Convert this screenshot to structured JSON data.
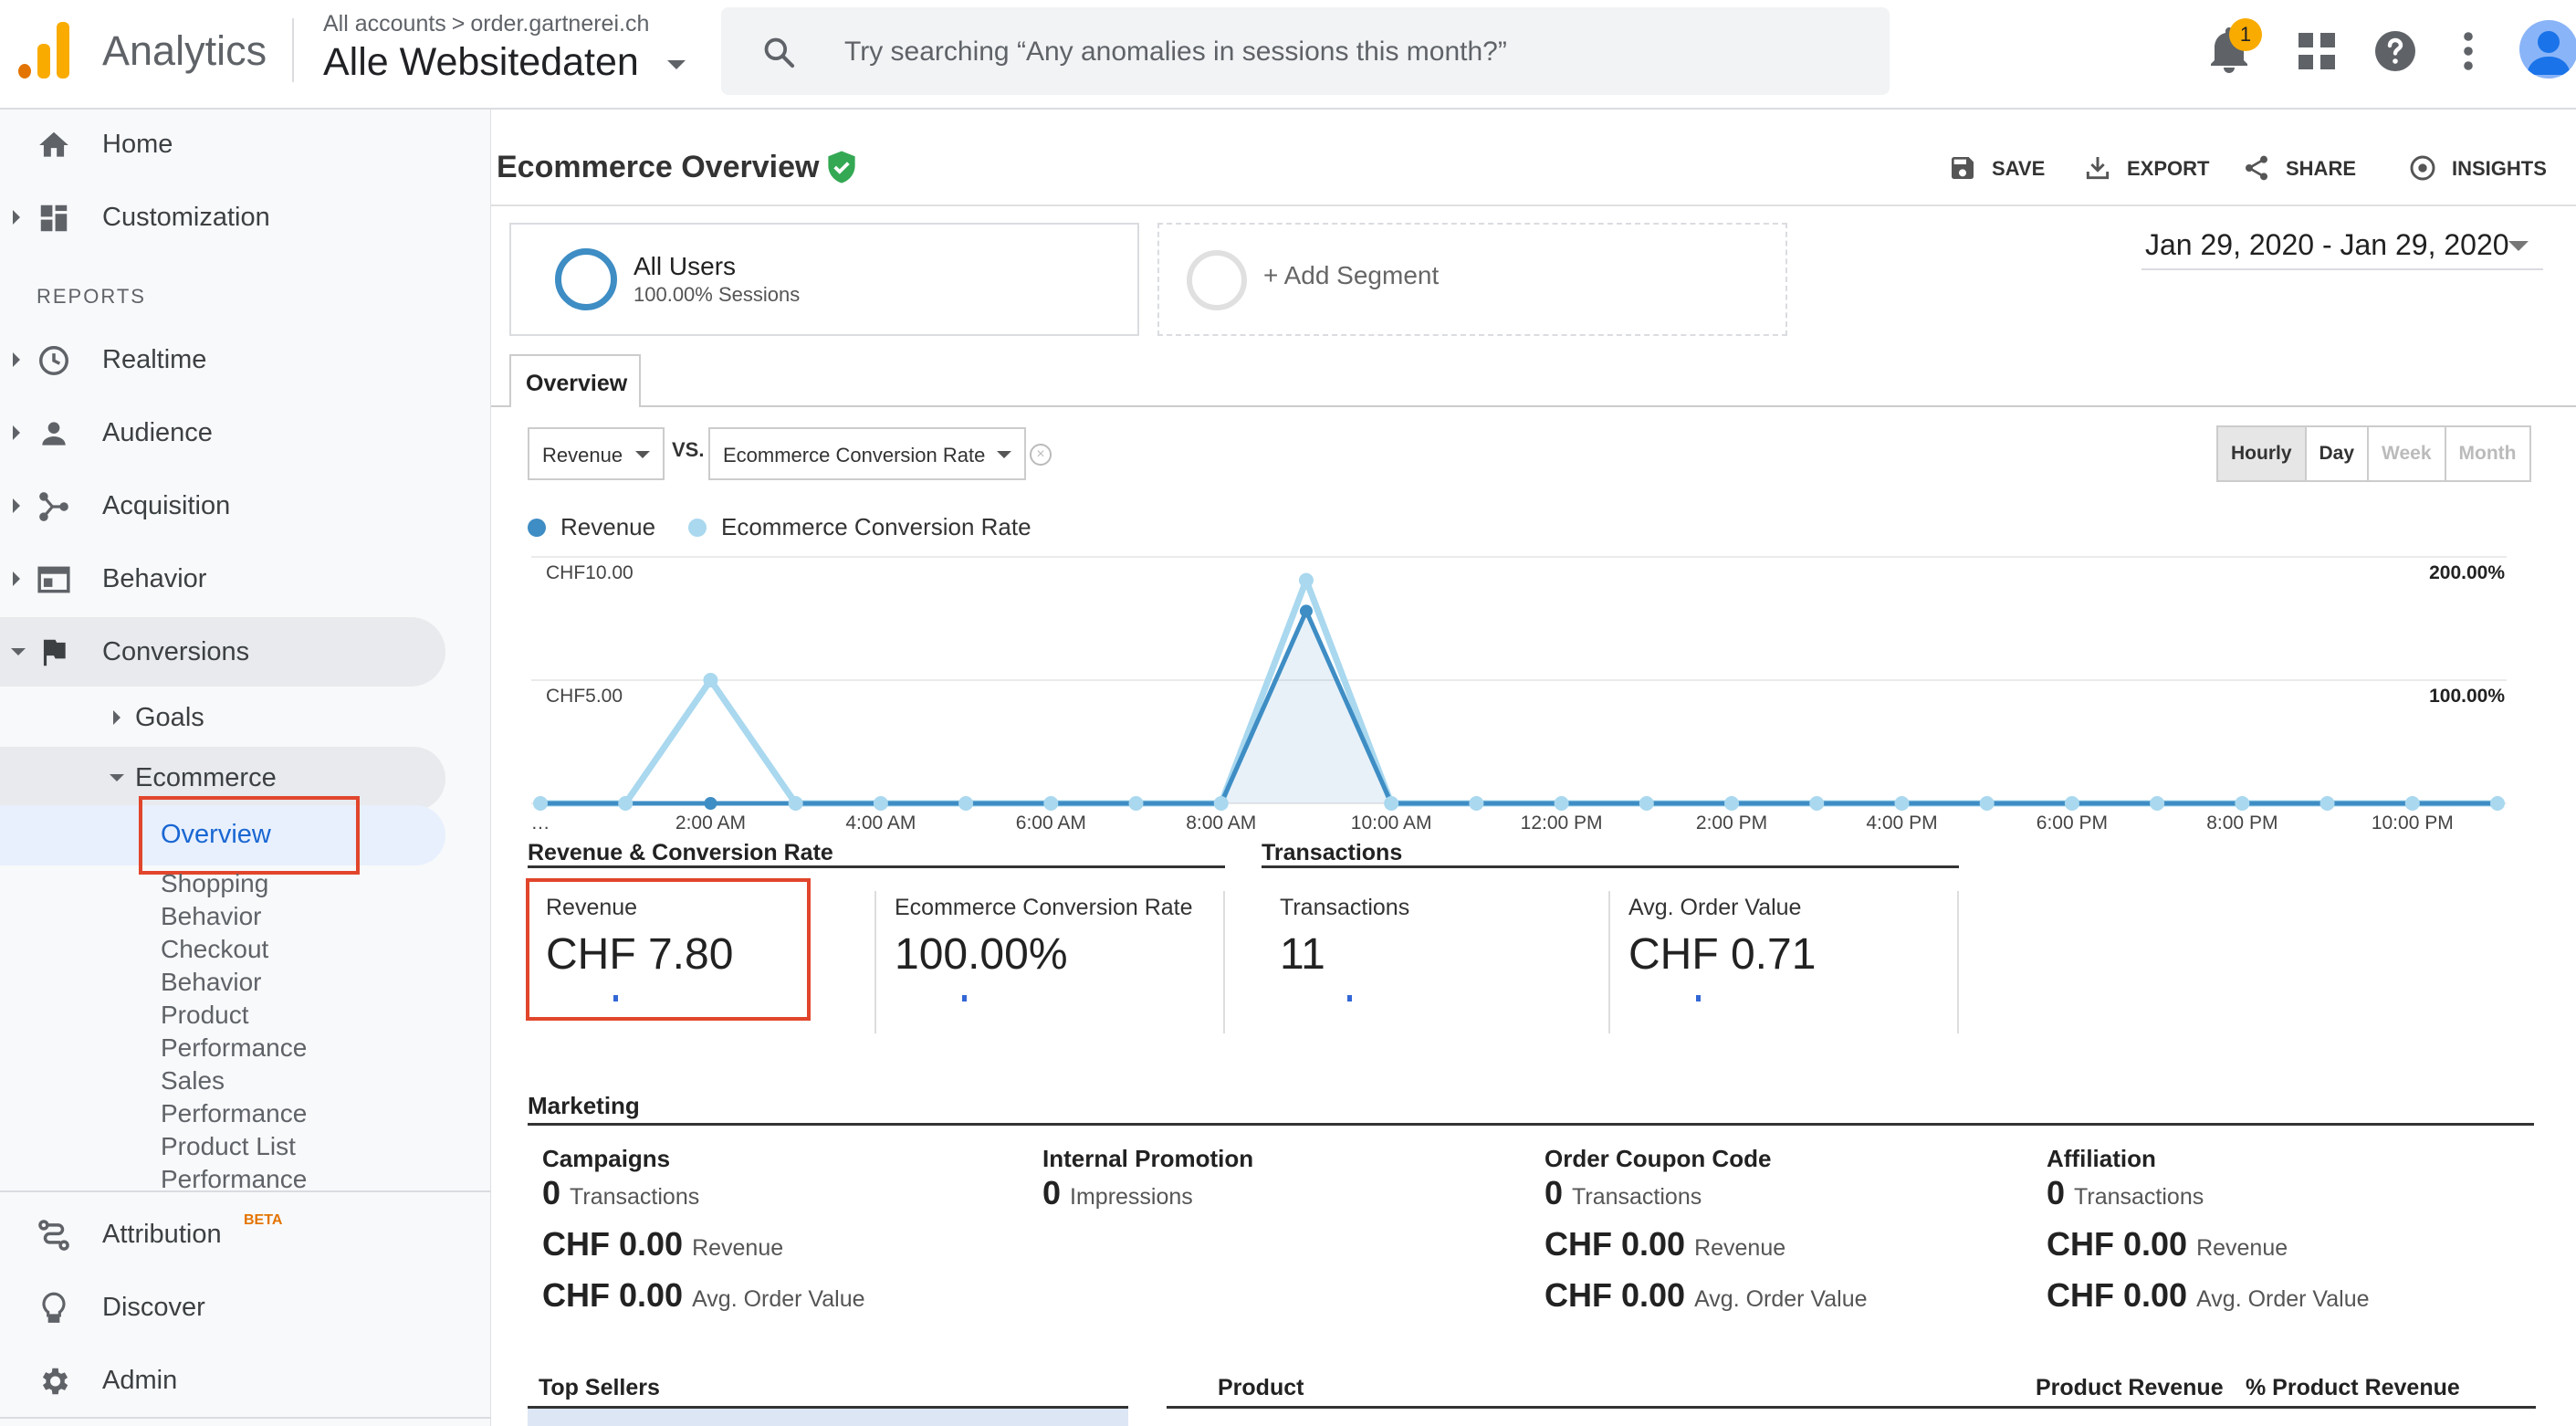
{
  "app": {
    "name": "Analytics"
  },
  "account": {
    "breadcrumb_root": "All accounts",
    "breadcrumb_sep": ">",
    "property": "order.gartnerei.ch",
    "view": "Alle Websitedaten"
  },
  "search": {
    "placeholder": "Try searching “Any anomalies in sessions this month?”"
  },
  "notifications": {
    "count": "1"
  },
  "sidebar": {
    "home": "Home",
    "customization": "Customization",
    "reports_header": "REPORTS",
    "realtime": "Realtime",
    "audience": "Audience",
    "acquisition": "Acquisition",
    "behavior": "Behavior",
    "conversions": "Conversions",
    "goals": "Goals",
    "ecommerce": "Ecommerce",
    "overview": "Overview",
    "shopping_behavior": [
      "Shopping",
      "Behavior"
    ],
    "checkout_behavior": [
      "Checkout",
      "Behavior"
    ],
    "product_performance": [
      "Product",
      "Performance"
    ],
    "sales_performance": [
      "Sales",
      "Performance"
    ],
    "product_list_performance": [
      "Product List",
      "Performance"
    ],
    "attribution": "Attribution",
    "attribution_badge": "BETA",
    "discover": "Discover",
    "admin": "Admin"
  },
  "page": {
    "title": "Ecommerce Overview"
  },
  "toolbar": {
    "save": "SAVE",
    "export": "EXPORT",
    "share": "SHARE",
    "insights": "INSIGHTS"
  },
  "segments": {
    "all_users": "All Users",
    "all_users_sub": "100.00% Sessions",
    "add": "+ Add Segment"
  },
  "date_range": "Jan 29, 2020 - Jan 29, 2020",
  "tabs": {
    "overview": "Overview"
  },
  "metric_select": {
    "primary": "Revenue",
    "vs": "VS.",
    "secondary": "Ecommerce Conversion Rate",
    "remove": "×"
  },
  "granularity": {
    "hourly": "Hourly",
    "day": "Day",
    "week": "Week",
    "month": "Month"
  },
  "colors": {
    "revenue": "#3e8dc4",
    "conversion": "#a9d8ef",
    "accent_blue": "#1a73e8",
    "highlight_red": "#e1462c"
  },
  "chart_data": {
    "type": "line",
    "legend": [
      "Revenue",
      "Ecommerce Conversion Rate"
    ],
    "x_tick_labels": [
      "…",
      "2:00 AM",
      "4:00 AM",
      "6:00 AM",
      "8:00 AM",
      "10:00 AM",
      "12:00 PM",
      "2:00 PM",
      "4:00 PM",
      "6:00 PM",
      "8:00 PM",
      "10:00 PM"
    ],
    "x": [
      "12 AM",
      "1 AM",
      "2 AM",
      "3 AM",
      "4 AM",
      "5 AM",
      "6 AM",
      "7 AM",
      "8 AM",
      "9 AM",
      "10 AM",
      "11 AM",
      "12 PM",
      "1 PM",
      "2 PM",
      "3 PM",
      "4 PM",
      "5 PM",
      "6 PM",
      "7 PM",
      "8 PM",
      "9 PM",
      "10 PM",
      "11 PM"
    ],
    "y_left_ticks": [
      "CHF10.00",
      "CHF5.00"
    ],
    "y_right_ticks": [
      "200.00%",
      "100.00%"
    ],
    "y_left_range": [
      0,
      10
    ],
    "y_right_range": [
      0,
      200
    ],
    "series": [
      {
        "name": "Revenue",
        "axis": "left",
        "values": [
          0,
          0,
          0,
          0,
          0,
          0,
          0,
          0,
          0,
          7.8,
          0,
          0,
          0,
          0,
          0,
          0,
          0,
          0,
          0,
          0,
          0,
          0,
          0,
          0
        ]
      },
      {
        "name": "Ecommerce Conversion Rate",
        "axis": "right",
        "values": [
          0,
          0,
          100,
          0,
          0,
          0,
          0,
          0,
          0,
          181,
          0,
          0,
          0,
          0,
          0,
          0,
          0,
          0,
          0,
          0,
          0,
          0,
          0,
          0
        ]
      }
    ]
  },
  "scorecards": {
    "revenue_header": "Revenue & Conversion Rate",
    "transactions_header": "Transactions",
    "cards": [
      {
        "label": "Revenue",
        "value": "CHF 7.80"
      },
      {
        "label": "Ecommerce Conversion Rate",
        "value": "100.00%"
      },
      {
        "label": "Transactions",
        "value": "11"
      },
      {
        "label": "Avg. Order Value",
        "value": "CHF 0.71"
      }
    ]
  },
  "marketing": {
    "title": "Marketing",
    "columns": [
      {
        "title": "Campaigns",
        "rows": [
          {
            "value": "0",
            "label": "Transactions"
          },
          {
            "value": "CHF 0.00",
            "label": "Revenue"
          },
          {
            "value": "CHF 0.00",
            "label": "Avg. Order Value"
          }
        ]
      },
      {
        "title": "Internal Promotion",
        "rows": [
          {
            "value": "0",
            "label": "Impressions"
          }
        ]
      },
      {
        "title": "Order Coupon Code",
        "rows": [
          {
            "value": "0",
            "label": "Transactions"
          },
          {
            "value": "CHF 0.00",
            "label": "Revenue"
          },
          {
            "value": "CHF 0.00",
            "label": "Avg. Order Value"
          }
        ]
      },
      {
        "title": "Affiliation",
        "rows": [
          {
            "value": "0",
            "label": "Transactions"
          },
          {
            "value": "CHF 0.00",
            "label": "Revenue"
          },
          {
            "value": "CHF 0.00",
            "label": "Avg. Order Value"
          }
        ]
      }
    ]
  },
  "top_sellers": {
    "title": "Top Sellers",
    "col_product": "Product",
    "col_revenue": "Product Revenue",
    "col_pct": "% Product Revenue"
  }
}
